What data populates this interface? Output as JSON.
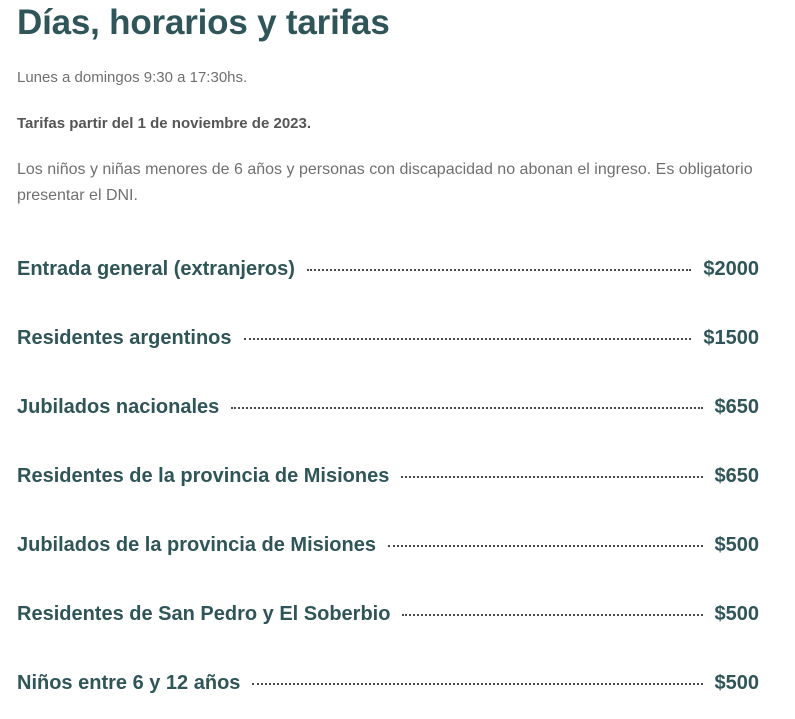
{
  "title": "Días, horarios y tarifas",
  "schedule": "Lunes a domingos  9:30 a 17:30hs.",
  "rates_notice": "Tarifas  partir del 1 de noviembre de 2023.",
  "exemption_note": "Los niños y niñas menores de 6 años y personas con discapacidad no abonan el ingreso. Es obligatorio presentar el DNI.",
  "prices": [
    {
      "label": "Entrada general (extranjeros)",
      "price": "$2000"
    },
    {
      "label": "Residentes argentinos",
      "price": "$1500"
    },
    {
      "label": "Jubilados nacionales",
      "price": "$650"
    },
    {
      "label": "Residentes de la provincia de Misiones",
      "price": "$650"
    },
    {
      "label": "Jubilados de la provincia de Misiones",
      "price": "$500"
    },
    {
      "label": "Residentes de San Pedro y El Soberbio",
      "price": "$500"
    },
    {
      "label": "Niños entre 6 y 12 años",
      "price": "$500"
    }
  ]
}
